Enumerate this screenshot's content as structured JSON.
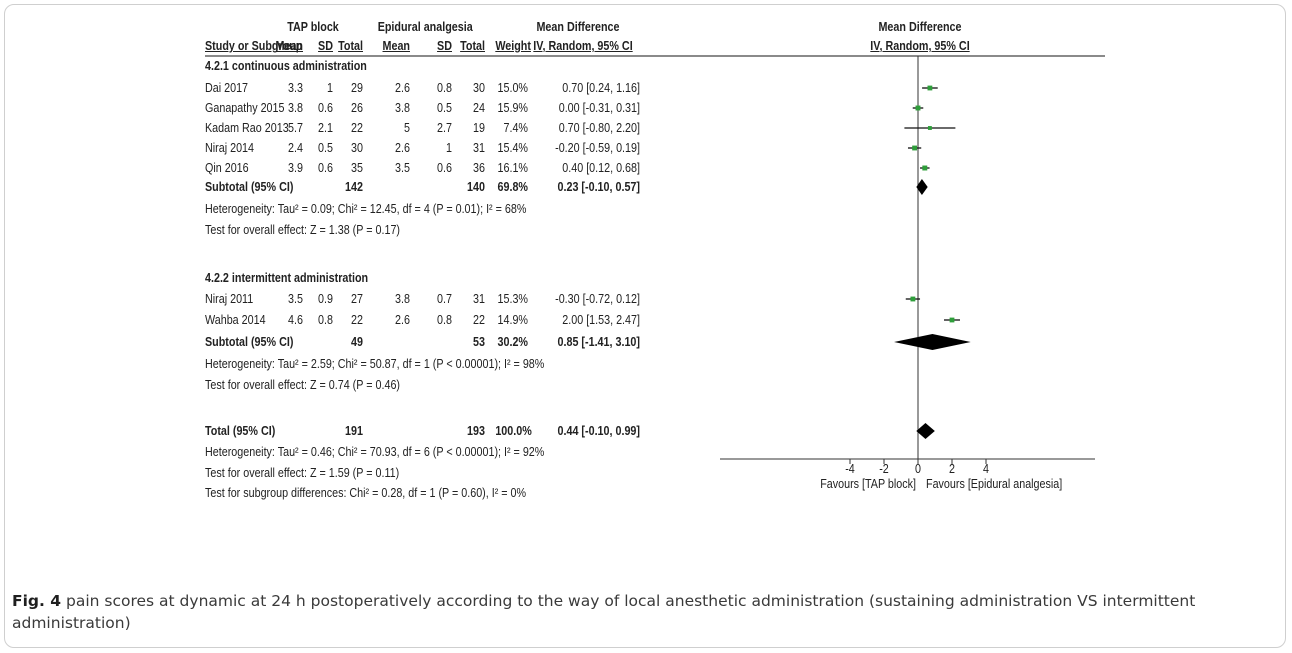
{
  "figure": {
    "headers": {
      "group1": "TAP block",
      "group2": "Epidural analgesia",
      "md_left_title": "Mean Difference",
      "md_left_sub": "IV, Random, 95% CI",
      "md_right_title": "Mean Difference",
      "md_right_sub": "IV, Random, 95% CI",
      "study": "Study or Subgroup",
      "mean1": "Mean",
      "sd1": "SD",
      "total1": "Total",
      "mean2": "Mean",
      "sd2": "SD",
      "total2": "Total",
      "weight": "Weight"
    },
    "subgroup1": {
      "title": "4.2.1 continuous administration",
      "subtotal_label": "Subtotal (95% CI)",
      "subtotal_total1": "142",
      "subtotal_total2": "140",
      "subtotal_weight": "69.8%",
      "subtotal_ci": "0.23 [-0.10, 0.57]",
      "heterogeneity": "Heterogeneity: Tau² = 0.09; Chi² = 12.45, df = 4 (P = 0.01); I² = 68%",
      "overall": "Test for overall effect: Z = 1.38 (P = 0.17)"
    },
    "subgroup2": {
      "title": "4.2.2 intermittent administration",
      "subtotal_label": "Subtotal (95% CI)",
      "subtotal_total1": "49",
      "subtotal_total2": "53",
      "subtotal_weight": "30.2%",
      "subtotal_ci": "0.85 [-1.41, 3.10]",
      "heterogeneity": "Heterogeneity: Tau² = 2.59; Chi² = 50.87, df = 1 (P < 0.00001); I² = 98%",
      "overall": "Test for overall effect: Z = 0.74 (P = 0.46)"
    },
    "total": {
      "label": "Total (95% CI)",
      "total1": "191",
      "total2": "193",
      "weight": "100.0%",
      "ci": "0.44 [-0.10, 0.99]",
      "heterogeneity": "Heterogeneity: Tau² = 0.46; Chi² = 70.93, df = 6 (P < 0.00001); I² = 92%",
      "overall": "Test for overall effect: Z = 1.59 (P = 0.11)",
      "subgroup_diff": "Test for subgroup differences: Chi² = 0.28, df = 1 (P = 0.60), I² = 0%"
    },
    "favours_left": "Favours [TAP block]",
    "favours_right": "Favours [Epidural analgesia]"
  },
  "chart_data": {
    "type": "forest",
    "xlim": [
      -4,
      4
    ],
    "ticks": [
      -4,
      -2,
      0,
      2,
      4
    ],
    "tick_labels": [
      "-4",
      "-2",
      "0",
      "2",
      "4"
    ],
    "colors": {
      "study_marker": "#2e9e3a",
      "diamond": "#000000",
      "line": "#000000"
    },
    "subgroups": [
      {
        "studies": [
          {
            "name": "Dai 2017",
            "mean1": "3.3",
            "sd1": "1",
            "n1": "29",
            "mean2": "2.6",
            "sd2": "0.8",
            "n2": "30",
            "weight": "15.0%",
            "ci_text": "0.70 [0.24, 1.16]",
            "md": 0.7,
            "lo": 0.24,
            "hi": 1.16
          },
          {
            "name": "Ganapathy 2015",
            "mean1": "3.8",
            "sd1": "0.6",
            "n1": "26",
            "mean2": "3.8",
            "sd2": "0.5",
            "n2": "24",
            "weight": "15.9%",
            "ci_text": "0.00 [-0.31, 0.31]",
            "md": 0.0,
            "lo": -0.31,
            "hi": 0.31
          },
          {
            "name": "Kadam Rao 2013",
            "mean1": "5.7",
            "sd1": "2.1",
            "n1": "22",
            "mean2": "5",
            "sd2": "2.7",
            "n2": "19",
            "weight": "7.4%",
            "ci_text": "0.70 [-0.80, 2.20]",
            "md": 0.7,
            "lo": -0.8,
            "hi": 2.2
          },
          {
            "name": "Niraj 2014",
            "mean1": "2.4",
            "sd1": "0.5",
            "n1": "30",
            "mean2": "2.6",
            "sd2": "1",
            "n2": "31",
            "weight": "15.4%",
            "ci_text": "-0.20 [-0.59, 0.19]",
            "md": -0.2,
            "lo": -0.59,
            "hi": 0.19
          },
          {
            "name": "Qin 2016",
            "mean1": "3.9",
            "sd1": "0.6",
            "n1": "35",
            "mean2": "3.5",
            "sd2": "0.6",
            "n2": "36",
            "weight": "16.1%",
            "ci_text": "0.40 [0.12, 0.68]",
            "md": 0.4,
            "lo": 0.12,
            "hi": 0.68
          }
        ],
        "subtotal": {
          "md": 0.23,
          "lo": -0.1,
          "hi": 0.57
        }
      },
      {
        "studies": [
          {
            "name": "Niraj 2011",
            "mean1": "3.5",
            "sd1": "0.9",
            "n1": "27",
            "mean2": "3.8",
            "sd2": "0.7",
            "n2": "31",
            "weight": "15.3%",
            "ci_text": "-0.30 [-0.72, 0.12]",
            "md": -0.3,
            "lo": -0.72,
            "hi": 0.12
          },
          {
            "name": "Wahba 2014",
            "mean1": "4.6",
            "sd1": "0.8",
            "n1": "22",
            "mean2": "2.6",
            "sd2": "0.8",
            "n2": "22",
            "weight": "14.9%",
            "ci_text": "2.00 [1.53, 2.47]",
            "md": 2.0,
            "lo": 1.53,
            "hi": 2.47
          }
        ],
        "subtotal": {
          "md": 0.85,
          "lo": -1.41,
          "hi": 3.1
        }
      }
    ],
    "total": {
      "md": 0.44,
      "lo": -0.1,
      "hi": 0.99
    }
  },
  "caption": {
    "label": "Fig. 4",
    "text": " pain scores at dynamic at 24 h postoperatively according to the way of local anesthetic administration (sustaining administration VS intermittent administration)"
  }
}
